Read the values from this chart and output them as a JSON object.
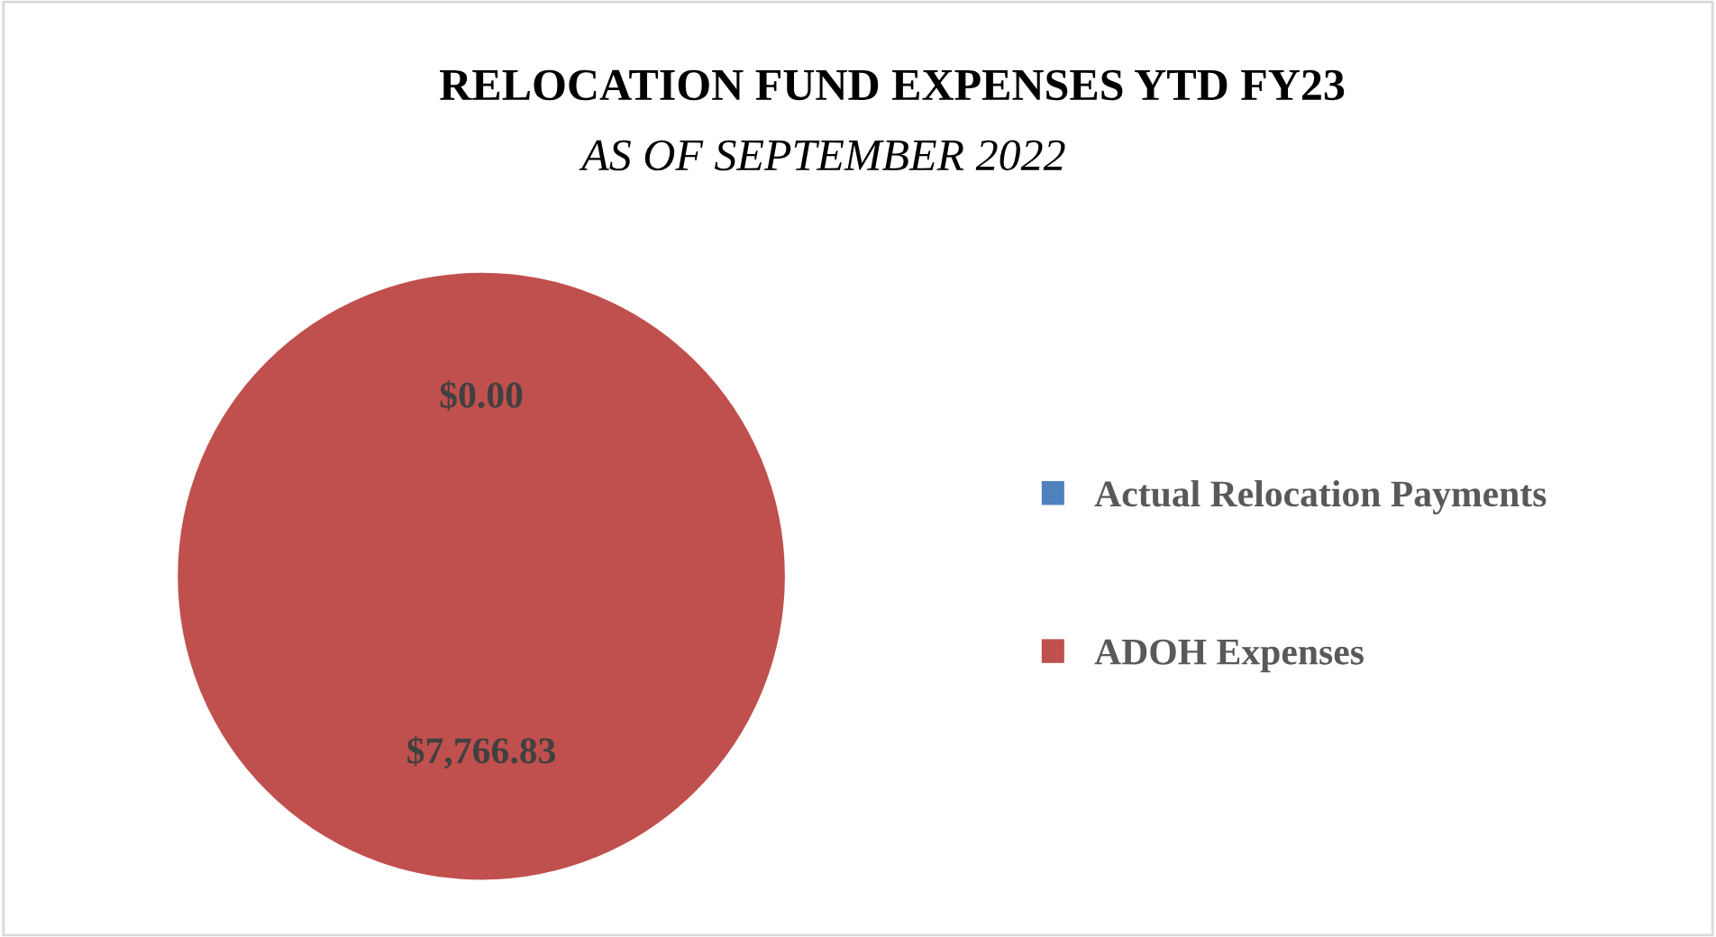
{
  "chart_data": {
    "type": "pie",
    "title": "RELOCATION FUND EXPENSES YTD FY23",
    "subtitle": "AS OF SEPTEMBER 2022",
    "categories": [
      "Actual Relocation Payments",
      "ADOH Expenses"
    ],
    "values": [
      0,
      7766.83
    ],
    "colors": [
      "#4f81bd",
      "#c0504d"
    ],
    "value_labels": [
      "$0.00",
      "$7,766.83"
    ],
    "legend": "right"
  }
}
